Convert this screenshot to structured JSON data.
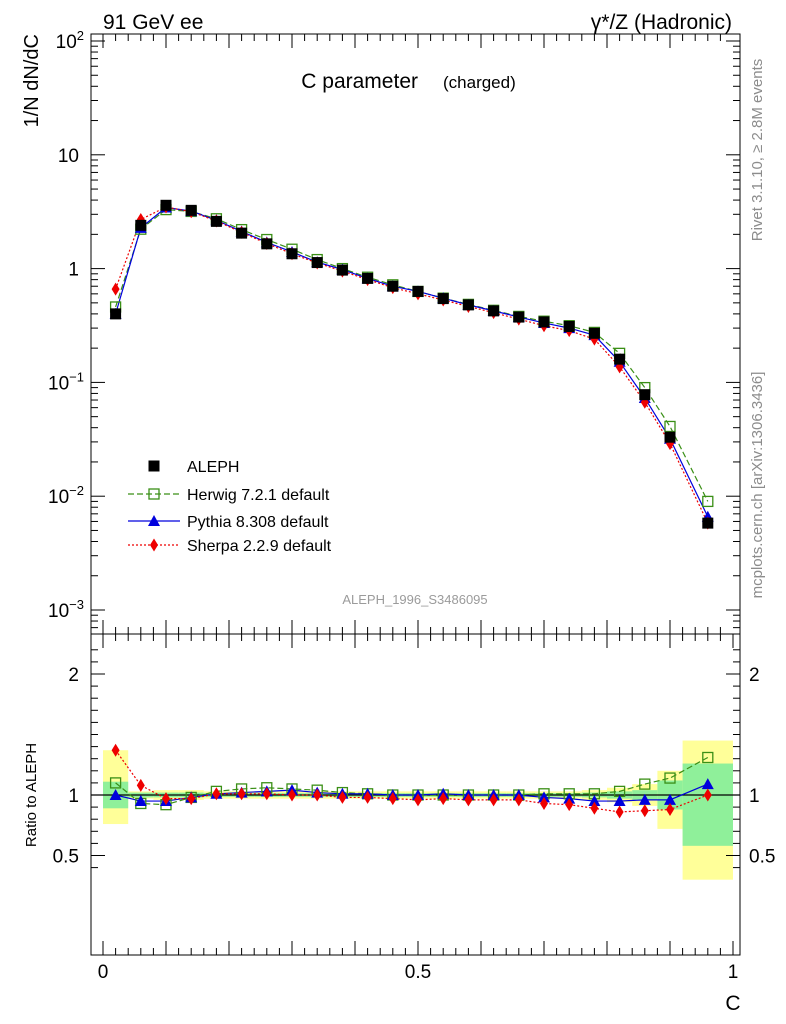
{
  "header": {
    "left": "91 GeV ee",
    "right": "γ*/Z (Hadronic)"
  },
  "title": {
    "main": "C parameter",
    "sub": "(charged)"
  },
  "side_text": {
    "rivet": "Rivet 3.1.10, ≥ 2.8M events",
    "mcplots": "mcplots.cern.ch [arXiv:1306.3436]"
  },
  "analysis_label": "ALEPH_1996_S3486095",
  "colors": {
    "data": "#000000",
    "herwig": "#3a8f16",
    "pythia": "#0000dd",
    "sherpa": "#ee0000",
    "band_inner": "#8ff09a",
    "band_outer": "#ffff99"
  },
  "chart_data": [
    {
      "type": "line",
      "panel": "main",
      "ylabel": "1/N dN/dC",
      "yscale": "log",
      "xlim": [
        0,
        1
      ],
      "ylim": [
        0.0006,
        120
      ],
      "y_ticks": [
        {
          "value": 100,
          "base": "10",
          "exp": "2"
        },
        {
          "value": 10,
          "label": "10"
        },
        {
          "value": 1,
          "label": "1"
        },
        {
          "value": 0.1,
          "base": "10",
          "exp": "−1"
        },
        {
          "value": 0.01,
          "base": "10",
          "exp": "−2"
        },
        {
          "value": 0.001,
          "base": "10",
          "exp": "−3"
        }
      ],
      "x": [
        0.02,
        0.06,
        0.1,
        0.14,
        0.18,
        0.22,
        0.26,
        0.3,
        0.34,
        0.38,
        0.42,
        0.46,
        0.5,
        0.54,
        0.58,
        0.62,
        0.66,
        0.7,
        0.74,
        0.78,
        0.82,
        0.86,
        0.9,
        0.96
      ],
      "series": [
        {
          "name": "ALEPH",
          "key": "data",
          "values": [
            0.4,
            2.4,
            3.6,
            3.25,
            2.6,
            2.05,
            1.65,
            1.35,
            1.13,
            0.97,
            0.82,
            0.7,
            0.63,
            0.545,
            0.48,
            0.425,
            0.375,
            0.34,
            0.31,
            0.27,
            0.16,
            0.078,
            0.033,
            0.0058
          ]
        },
        {
          "name": "Herwig 7.2.1 default",
          "key": "herwig",
          "values": [
            0.46,
            2.22,
            3.3,
            3.18,
            2.74,
            2.2,
            1.8,
            1.48,
            1.2,
            1.0,
            0.84,
            0.72,
            0.63,
            0.55,
            0.485,
            0.43,
            0.38,
            0.345,
            0.315,
            0.275,
            0.18,
            0.09,
            0.041,
            0.009
          ]
        },
        {
          "name": "Pythia 8.308 default",
          "key": "pythia",
          "values": [
            0.4,
            2.28,
            3.44,
            3.2,
            2.66,
            2.12,
            1.7,
            1.4,
            1.14,
            0.98,
            0.82,
            0.7,
            0.63,
            0.55,
            0.48,
            0.425,
            0.375,
            0.333,
            0.3,
            0.26,
            0.152,
            0.073,
            0.032,
            0.0066
          ]
        },
        {
          "name": "Sherpa 2.2.9 default",
          "key": "sherpa",
          "values": [
            0.66,
            2.7,
            3.48,
            3.16,
            2.62,
            2.08,
            1.66,
            1.35,
            1.12,
            0.95,
            0.8,
            0.68,
            0.6,
            0.53,
            0.465,
            0.41,
            0.36,
            0.315,
            0.285,
            0.24,
            0.137,
            0.067,
            0.029,
            0.0058
          ]
        }
      ],
      "legend": {
        "placement": "lower-left"
      }
    },
    {
      "type": "line",
      "panel": "ratio",
      "ylabel": "Ratio to ALEPH",
      "xlabel": "C",
      "xlim": [
        -0.02,
        1.0
      ],
      "ylim": [
        0.35,
        2.25
      ],
      "y_ticks": [
        {
          "value": 2,
          "label": "2"
        },
        {
          "value": 1,
          "label": "1"
        },
        {
          "value": 0.5,
          "label": "0.5"
        }
      ],
      "x_ticks": [
        {
          "value": 0,
          "label": "0"
        },
        {
          "value": 0.5,
          "label": "0.5"
        },
        {
          "value": 1,
          "label": "1"
        }
      ],
      "bands": [
        {
          "x0": 0.0,
          "x1": 0.04,
          "inner": [
            0.89,
            1.11
          ],
          "outer": [
            0.76,
            1.37
          ]
        },
        {
          "x0": 0.04,
          "x1": 0.08,
          "inner": [
            0.98,
            1.02
          ],
          "outer": [
            0.97,
            1.03
          ]
        },
        {
          "x0": 0.08,
          "x1": 0.12,
          "inner": [
            0.98,
            1.02
          ],
          "outer": [
            0.96,
            1.04
          ]
        },
        {
          "x0": 0.12,
          "x1": 0.16,
          "inner": [
            0.98,
            1.02
          ],
          "outer": [
            0.96,
            1.04
          ]
        },
        {
          "x0": 0.16,
          "x1": 0.2,
          "inner": [
            0.985,
            1.015
          ],
          "outer": [
            0.97,
            1.03
          ]
        },
        {
          "x0": 0.2,
          "x1": 0.24,
          "inner": [
            0.985,
            1.015
          ],
          "outer": [
            0.97,
            1.03
          ]
        },
        {
          "x0": 0.24,
          "x1": 0.28,
          "inner": [
            0.985,
            1.015
          ],
          "outer": [
            0.97,
            1.03
          ]
        },
        {
          "x0": 0.28,
          "x1": 0.32,
          "inner": [
            0.985,
            1.015
          ],
          "outer": [
            0.97,
            1.03
          ]
        },
        {
          "x0": 0.32,
          "x1": 0.36,
          "inner": [
            0.985,
            1.015
          ],
          "outer": [
            0.97,
            1.03
          ]
        },
        {
          "x0": 0.36,
          "x1": 0.4,
          "inner": [
            0.985,
            1.015
          ],
          "outer": [
            0.97,
            1.03
          ]
        },
        {
          "x0": 0.4,
          "x1": 0.44,
          "inner": [
            0.985,
            1.015
          ],
          "outer": [
            0.97,
            1.03
          ]
        },
        {
          "x0": 0.44,
          "x1": 0.48,
          "inner": [
            0.985,
            1.015
          ],
          "outer": [
            0.97,
            1.03
          ]
        },
        {
          "x0": 0.48,
          "x1": 0.52,
          "inner": [
            0.985,
            1.015
          ],
          "outer": [
            0.97,
            1.03
          ]
        },
        {
          "x0": 0.52,
          "x1": 0.56,
          "inner": [
            0.985,
            1.015
          ],
          "outer": [
            0.97,
            1.03
          ]
        },
        {
          "x0": 0.56,
          "x1": 0.6,
          "inner": [
            0.985,
            1.015
          ],
          "outer": [
            0.97,
            1.03
          ]
        },
        {
          "x0": 0.6,
          "x1": 0.64,
          "inner": [
            0.985,
            1.015
          ],
          "outer": [
            0.97,
            1.03
          ]
        },
        {
          "x0": 0.64,
          "x1": 0.68,
          "inner": [
            0.985,
            1.015
          ],
          "outer": [
            0.97,
            1.03
          ]
        },
        {
          "x0": 0.68,
          "x1": 0.72,
          "inner": [
            0.985,
            1.015
          ],
          "outer": [
            0.97,
            1.03
          ]
        },
        {
          "x0": 0.72,
          "x1": 0.76,
          "inner": [
            0.985,
            1.015
          ],
          "outer": [
            0.97,
            1.03
          ]
        },
        {
          "x0": 0.76,
          "x1": 0.8,
          "inner": [
            0.98,
            1.02
          ],
          "outer": [
            0.96,
            1.04
          ]
        },
        {
          "x0": 0.8,
          "x1": 0.84,
          "inner": [
            0.97,
            1.03
          ],
          "outer": [
            0.94,
            1.06
          ]
        },
        {
          "x0": 0.84,
          "x1": 0.88,
          "inner": [
            0.96,
            1.04
          ],
          "outer": [
            0.91,
            1.09
          ]
        },
        {
          "x0": 0.88,
          "x1": 0.92,
          "inner": [
            0.88,
            1.12
          ],
          "outer": [
            0.72,
            1.2
          ]
        },
        {
          "x0": 0.92,
          "x1": 1.0,
          "inner": [
            0.58,
            1.26
          ],
          "outer": [
            0.3,
            1.45
          ]
        }
      ],
      "x": [
        0.02,
        0.06,
        0.1,
        0.14,
        0.18,
        0.22,
        0.26,
        0.3,
        0.34,
        0.38,
        0.42,
        0.46,
        0.5,
        0.54,
        0.58,
        0.62,
        0.66,
        0.7,
        0.74,
        0.78,
        0.82,
        0.86,
        0.9,
        0.96
      ],
      "series": [
        {
          "name": "Herwig 7.2.1 default",
          "key": "herwig",
          "values": [
            1.1,
            0.93,
            0.92,
            0.98,
            1.03,
            1.05,
            1.06,
            1.05,
            1.04,
            1.02,
            1.01,
            1.0,
            1.0,
            1.0,
            1.0,
            1.0,
            1.0,
            1.01,
            1.01,
            1.01,
            1.03,
            1.09,
            1.14,
            1.31
          ]
        },
        {
          "name": "Pythia 8.308 default",
          "key": "pythia",
          "values": [
            1.0,
            0.95,
            0.95,
            0.98,
            1.01,
            1.02,
            1.03,
            1.04,
            1.02,
            1.01,
            1.01,
            1.0,
            1.0,
            1.01,
            1.0,
            1.0,
            1.0,
            0.98,
            0.97,
            0.95,
            0.95,
            0.96,
            0.96,
            1.09
          ]
        },
        {
          "name": "Sherpa 2.2.9 default",
          "key": "sherpa",
          "values": [
            1.37,
            1.08,
            0.97,
            0.97,
            1.01,
            1.01,
            1.01,
            1.0,
            1.0,
            0.98,
            0.98,
            0.97,
            0.96,
            0.97,
            0.96,
            0.96,
            0.96,
            0.93,
            0.92,
            0.89,
            0.86,
            0.87,
            0.88,
            1.0
          ]
        }
      ]
    }
  ]
}
